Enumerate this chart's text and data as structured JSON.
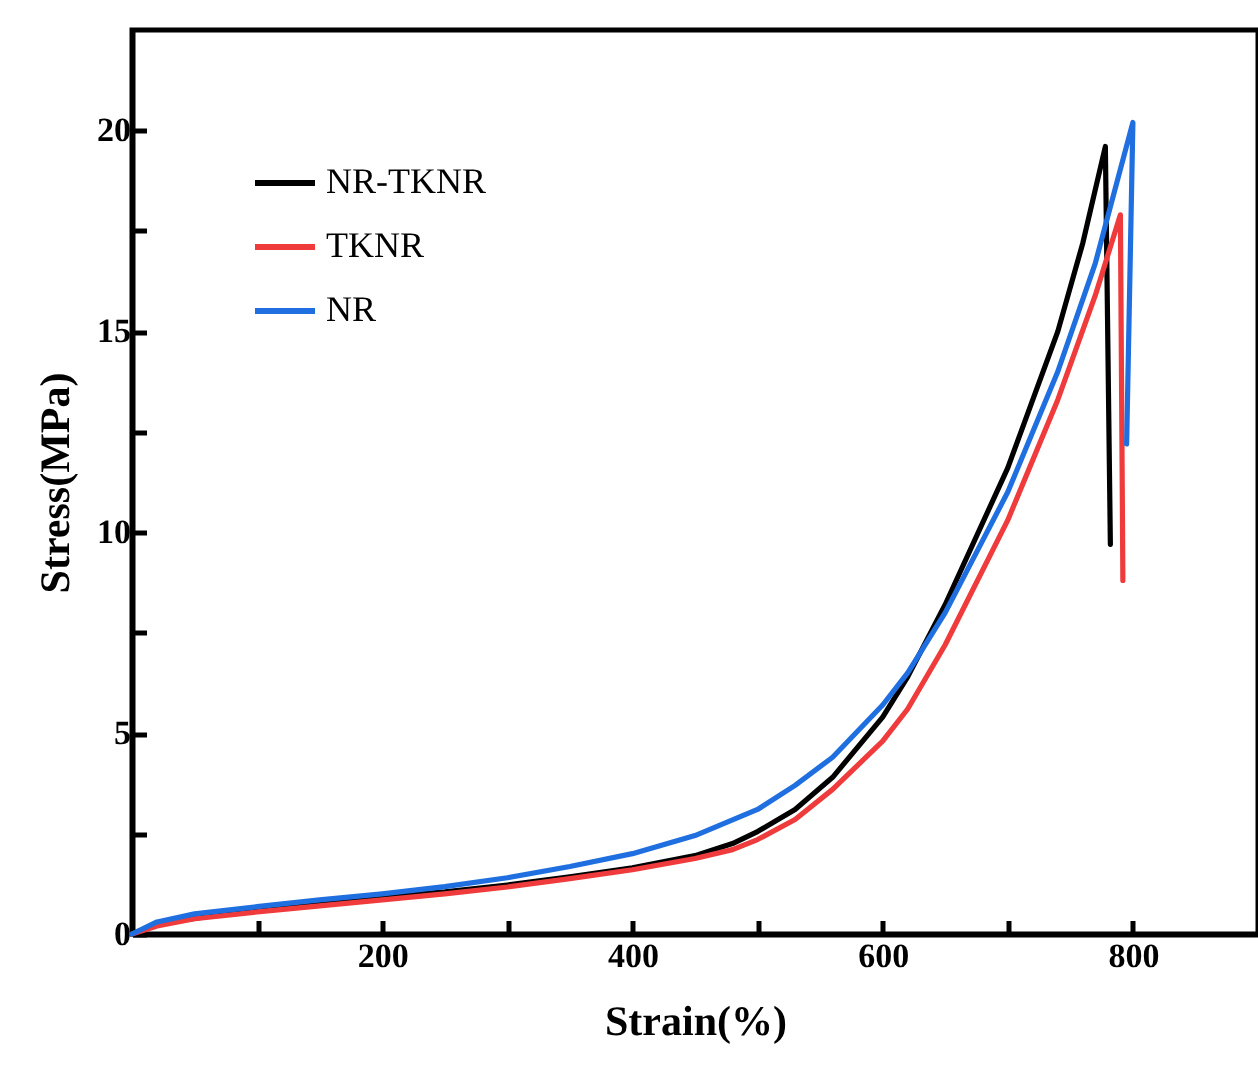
{
  "chart_data": {
    "type": "line",
    "xlabel": "Strain(%)",
    "ylabel": "Stress(MPa)",
    "xlim": [
      0,
      900
    ],
    "ylim": [
      0,
      22.5
    ],
    "xticks": [
      {
        "value": 100,
        "label": null
      },
      200,
      {
        "value": 300,
        "label": null
      },
      400,
      {
        "value": 500,
        "label": null
      },
      600,
      {
        "value": 700,
        "label": null
      },
      800
    ],
    "yticks": [
      0,
      {
        "value": 2.5,
        "label": null
      },
      5,
      {
        "value": 7.5,
        "label": null
      },
      10,
      {
        "value": 12.5,
        "label": null
      },
      15,
      {
        "value": 17.5,
        "label": null
      },
      20
    ],
    "legend": "top left",
    "grid": false,
    "marker": "none",
    "line_style": "solid",
    "series": [
      {
        "name": "NR-TKNR",
        "color": "#000000",
        "x": [
          0,
          20,
          100,
          150,
          200,
          250,
          300,
          350,
          400,
          450,
          480,
          500,
          530,
          560,
          600,
          620,
          650,
          700,
          740,
          760,
          778,
          782
        ],
        "values": [
          0,
          0.25,
          0.62,
          0.78,
          0.92,
          1.05,
          1.22,
          1.42,
          1.65,
          1.95,
          2.25,
          2.55,
          3.1,
          3.9,
          5.4,
          6.4,
          8.2,
          11.6,
          15,
          17.2,
          19.6,
          9.7
        ]
      },
      {
        "name": "TKNR",
        "color": "#ef3b3b",
        "x": [
          0,
          20,
          50,
          100,
          150,
          200,
          250,
          300,
          350,
          400,
          450,
          480,
          500,
          530,
          560,
          600,
          620,
          650,
          700,
          740,
          770,
          790,
          792
        ],
        "values": [
          0,
          0.2,
          0.38,
          0.55,
          0.7,
          0.85,
          1.0,
          1.17,
          1.38,
          1.6,
          1.88,
          2.1,
          2.35,
          2.85,
          3.6,
          4.8,
          5.6,
          7.2,
          10.3,
          13.3,
          15.9,
          17.9,
          8.8
        ]
      },
      {
        "name": "NR",
        "color": "#1f6fe0",
        "x": [
          0,
          20,
          50,
          100,
          150,
          200,
          250,
          300,
          350,
          400,
          450,
          500,
          530,
          560,
          600,
          620,
          650,
          700,
          740,
          770,
          800,
          795
        ],
        "values": [
          0,
          0.3,
          0.5,
          0.68,
          0.85,
          1.0,
          1.18,
          1.4,
          1.68,
          2.0,
          2.45,
          3.1,
          3.7,
          4.4,
          5.7,
          6.5,
          8.0,
          11.0,
          14.0,
          16.7,
          20.2,
          12.2
        ]
      }
    ]
  }
}
